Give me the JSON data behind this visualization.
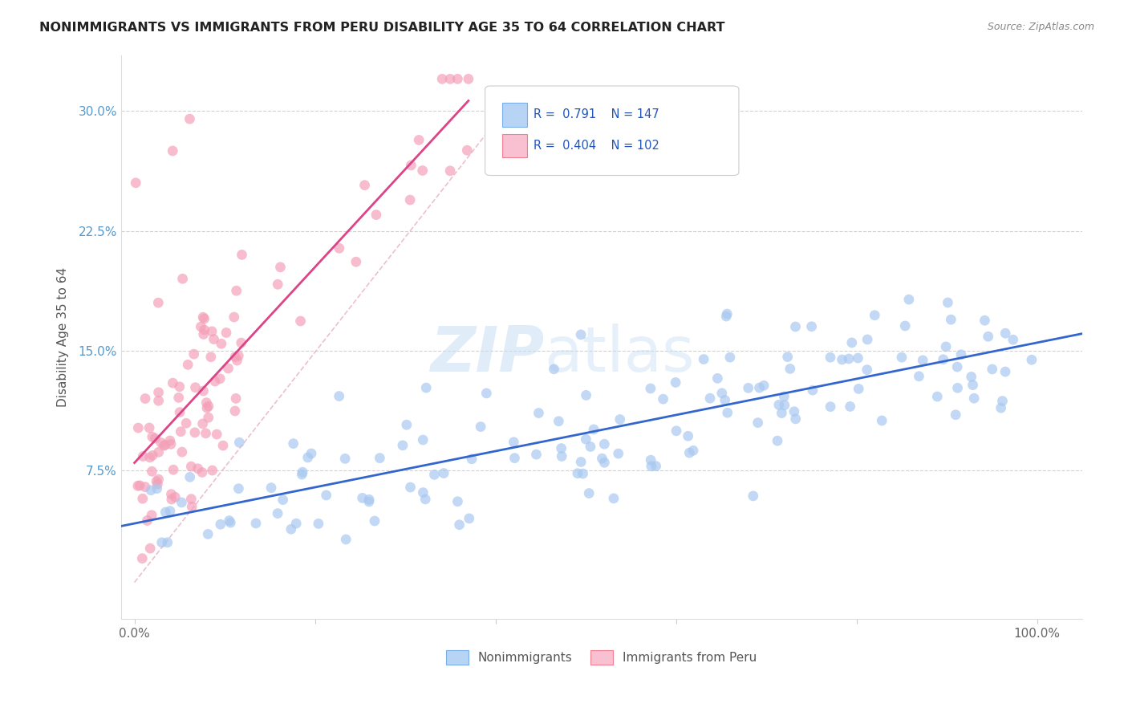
{
  "title": "NONIMMIGRANTS VS IMMIGRANTS FROM PERU DISABILITY AGE 35 TO 64 CORRELATION CHART",
  "source": "Source: ZipAtlas.com",
  "ylabel": "Disability Age 35 to 64",
  "watermark_zip": "ZIP",
  "watermark_atlas": "atlas",
  "nonimm_R": 0.791,
  "nonimm_N": 147,
  "peru_R": 0.404,
  "peru_N": 102,
  "nonimm_color": "#a8c8f0",
  "peru_color": "#f4a0b8",
  "nonimm_line_color": "#3366cc",
  "peru_line_color": "#dd4488",
  "peru_refline_color": "#e8b0c4",
  "bg_color": "#ffffff",
  "grid_color": "#cccccc",
  "legend_box_nonimm_face": "#b8d4f4",
  "legend_box_nonimm_edge": "#7aaeea",
  "legend_box_peru_face": "#f8c0d0",
  "legend_box_peru_edge": "#f08090",
  "xlim": [
    -0.015,
    1.05
  ],
  "ylim": [
    -0.018,
    0.335
  ],
  "y_ticks": [
    0.075,
    0.15,
    0.225,
    0.3
  ],
  "y_tick_labels": [
    "7.5%",
    "15.0%",
    "22.5%",
    "30.0%"
  ]
}
